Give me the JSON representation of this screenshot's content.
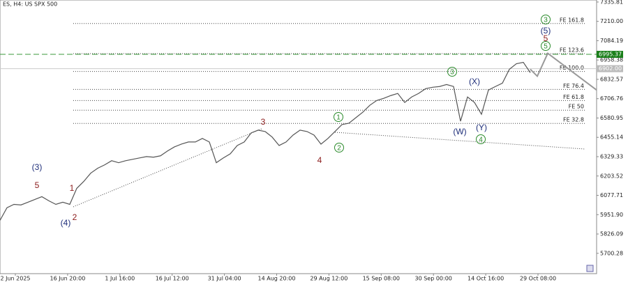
{
  "chart_data": {
    "type": "line",
    "title": "ES, H4:  US SPX 500",
    "ylim": [
      5568,
      7349
    ],
    "yticks": [
      {
        "value": 7335.81,
        "label": "7335.81"
      },
      {
        "value": 7210,
        "label": "7210.00"
      },
      {
        "value": 7084.19,
        "label": "7084.19"
      },
      {
        "value": 6958.38,
        "label": "6958.38"
      },
      {
        "value": 6832.57,
        "label": "6832.57"
      },
      {
        "value": 6706.76,
        "label": "6706.76"
      },
      {
        "value": 6580.95,
        "label": "6580.95"
      },
      {
        "value": 6455.14,
        "label": "6455.14"
      },
      {
        "value": 6329.33,
        "label": "6329.33"
      },
      {
        "value": 6203.52,
        "label": "6203.52"
      },
      {
        "value": 6077.71,
        "label": "6077.71"
      },
      {
        "value": 5951.9,
        "label": "5951.90"
      },
      {
        "value": 5826.09,
        "label": "5826.09"
      },
      {
        "value": 5700.28,
        "label": "5700.28"
      }
    ],
    "x_labels": [
      "2 Jun 2025",
      "16 Jun 20:00",
      "1 Jul 16:00",
      "16 Jul 12:00",
      "31 Jul 04:00",
      "14 Aug 20:00",
      "29 Aug 12:00",
      "15 Sep 08:00",
      "30 Sep 00:00",
      "14 Oct 16:00",
      "29 Oct 08:00"
    ],
    "series": [
      {
        "color": "#555555",
        "values": [
          5915,
          5997,
          6019,
          6015,
          6033,
          6051,
          6069,
          6042,
          6019,
          6033,
          6019,
          6123,
          6168,
          6222,
          6254,
          6276,
          6303,
          6290,
          6303,
          6312,
          6321,
          6330,
          6326,
          6335,
          6366,
          6393,
          6411,
          6425,
          6425,
          6448,
          6425,
          6290,
          6321,
          6348,
          6402,
          6425,
          6484,
          6502,
          6493,
          6457,
          6402,
          6425,
          6470,
          6502,
          6493,
          6470,
          6411,
          6448,
          6493,
          6538,
          6547,
          6583,
          6619,
          6664,
          6695,
          6709,
          6727,
          6741,
          6682,
          6718,
          6741,
          6772,
          6781,
          6786,
          6799,
          6786,
          6560,
          6718,
          6682,
          6605,
          6763,
          6786,
          6808,
          6898,
          6934,
          6943,
          6876
        ]
      },
      {
        "color": "#999999",
        "values": [
          6898,
          6853,
          7002,
          6763
        ]
      }
    ],
    "fe_levels": [
      {
        "label": "FE 161.8",
        "value": 7196
      },
      {
        "label": "FE 123.6",
        "value": 7000
      },
      {
        "label": "FE 100.0",
        "value": 6884
      },
      {
        "label": "FE 76.4",
        "value": 6767
      },
      {
        "label": "FE 61.8",
        "value": 6695
      },
      {
        "label": "FE 50",
        "value": 6632
      },
      {
        "label": "FE 32.8",
        "value": 6546
      }
    ],
    "price_marks": [
      {
        "label": "6995.37",
        "value": 6995.37,
        "color": "#1a7f1a"
      },
      {
        "label": "6902.00",
        "value": 6902,
        "color": "#bbbbbb"
      }
    ],
    "waves": [
      "(3)",
      "5",
      "1",
      "(4)",
      "2",
      "3",
      "4",
      "1",
      "2",
      "3",
      "(X)",
      "(W)",
      "(Y)",
      "4",
      "3",
      "(5)",
      "5",
      "5"
    ]
  }
}
